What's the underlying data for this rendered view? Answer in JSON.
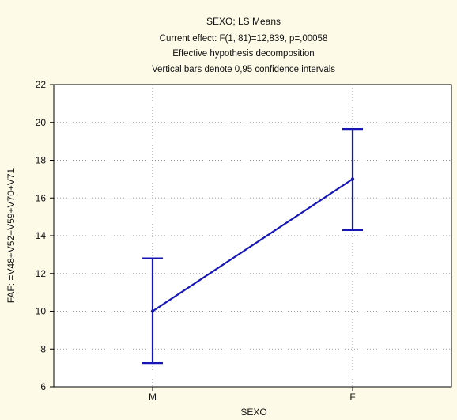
{
  "chart_data": {
    "type": "line",
    "title": "SEXO; LS Means",
    "subtitle_lines": [
      "Current effect: F(1, 81)=12,839, p=,00058",
      "Effective hypothesis decomposition",
      "Vertical bars denote 0,95 confidence intervals"
    ],
    "xlabel": "SEXO",
    "ylabel": "FAF: =V48+V52+V59+V70+V71",
    "categories": [
      "M",
      "F"
    ],
    "values": [
      10.0,
      17.0
    ],
    "ci_lower": [
      7.25,
      14.3
    ],
    "ci_upper": [
      12.8,
      19.65
    ],
    "ylim": [
      6,
      22
    ],
    "yticks": [
      6,
      8,
      10,
      12,
      14,
      16,
      18,
      20,
      22
    ],
    "grid": true,
    "legend": "none",
    "colors": {
      "line": "#1515b8",
      "background": "#fdfae8",
      "plot_area": "#ffffff",
      "grid": "#9a9a9a"
    }
  }
}
